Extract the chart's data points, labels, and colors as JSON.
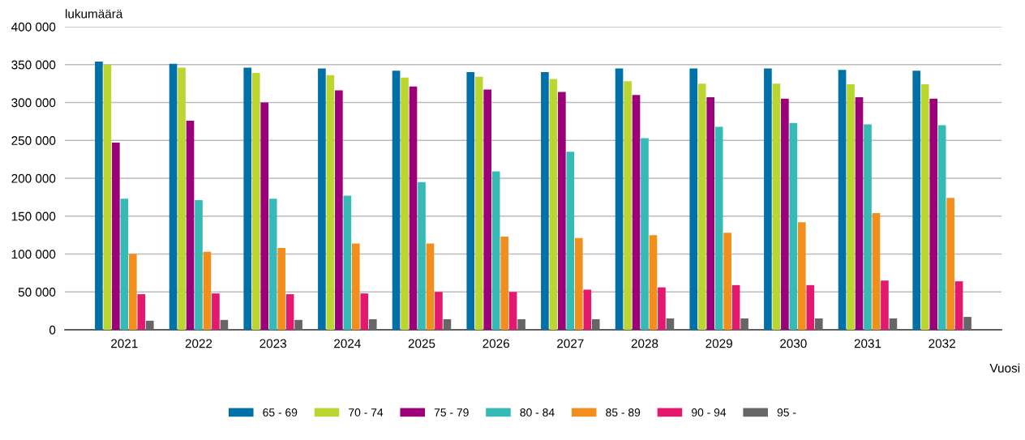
{
  "chart_data": {
    "type": "bar",
    "ylabel": "lukumäärä",
    "xlabel": "Vuosi",
    "categories": [
      "2021",
      "2022",
      "2023",
      "2024",
      "2025",
      "2026",
      "2027",
      "2028",
      "2029",
      "2030",
      "2031",
      "2032"
    ],
    "series": [
      {
        "name": "65 - 69",
        "color": "#0070a8",
        "values": [
          354000,
          351000,
          346000,
          345000,
          342000,
          340000,
          340000,
          345000,
          345000,
          345000,
          343000,
          342000
        ]
      },
      {
        "name": "70 - 74",
        "color": "#bcd631",
        "values": [
          350000,
          346000,
          339000,
          336000,
          333000,
          334000,
          331000,
          328000,
          325000,
          325000,
          324000,
          324000
        ]
      },
      {
        "name": "75 - 79",
        "color": "#9c0078",
        "values": [
          247000,
          276000,
          300000,
          316000,
          321000,
          317000,
          314000,
          310000,
          307000,
          305000,
          307000,
          305000
        ]
      },
      {
        "name": "80 - 84",
        "color": "#35bab6",
        "values": [
          173000,
          171000,
          173000,
          177000,
          195000,
          209000,
          235000,
          253000,
          268000,
          273000,
          271000,
          270000
        ]
      },
      {
        "name": "85 - 89",
        "color": "#f28f1c",
        "values": [
          100000,
          103000,
          108000,
          114000,
          114000,
          123000,
          121000,
          125000,
          128000,
          142000,
          154000,
          174000
        ]
      },
      {
        "name": "90 - 94",
        "color": "#e3186f",
        "values": [
          47000,
          48000,
          47000,
          48000,
          50000,
          50000,
          53000,
          56000,
          59000,
          59000,
          65000,
          64000
        ]
      },
      {
        "name": "95 -",
        "color": "#666666",
        "values": [
          12000,
          13000,
          13000,
          14000,
          14000,
          14000,
          14000,
          15000,
          15000,
          15000,
          15000,
          17000
        ]
      }
    ],
    "ylim": [
      0,
      400000
    ],
    "yticks": [
      0,
      {
        "value": 50000,
        "label": "50 000"
      },
      {
        "value": 100000,
        "label": "100 000"
      },
      {
        "value": 150000,
        "label": "150 000"
      },
      {
        "value": 200000,
        "label": "200 000"
      },
      {
        "value": 250000,
        "label": "250 000"
      },
      {
        "value": 300000,
        "label": "300 000"
      },
      {
        "value": 350000,
        "label": "350 000"
      },
      {
        "value": 400000,
        "label": "400 000"
      }
    ],
    "grid": "y",
    "legend": "bottom"
  }
}
